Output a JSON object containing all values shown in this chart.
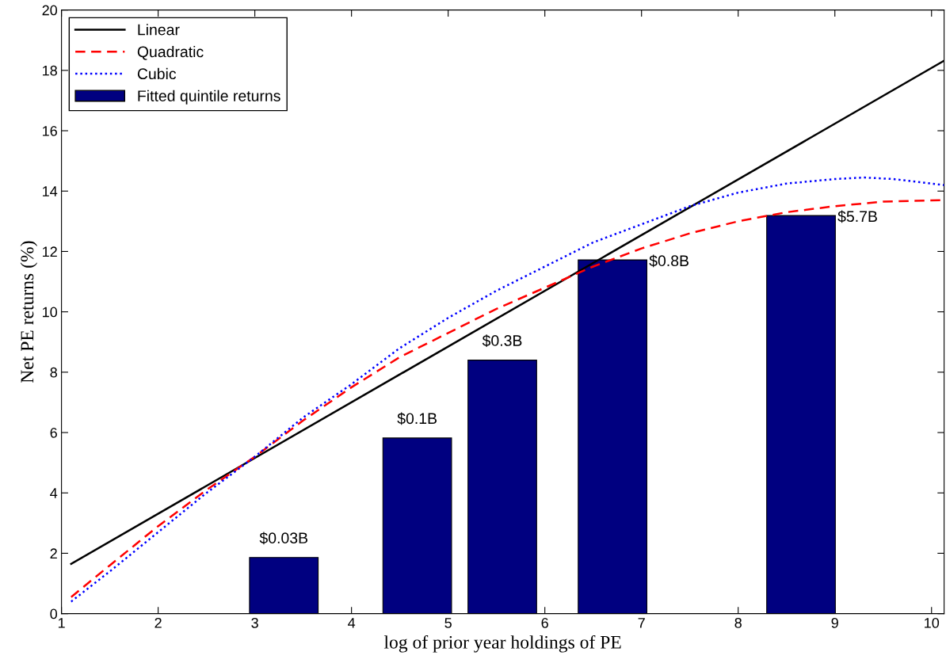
{
  "chart_data": {
    "type": "bar",
    "xlabel": "log of prior year holdings of PE",
    "ylabel": "Net PE returns (%)",
    "xlim": [
      1,
      10.13
    ],
    "ylim": [
      0,
      20
    ],
    "xticks": [
      1,
      2,
      3,
      4,
      5,
      6,
      7,
      8,
      9,
      10
    ],
    "yticks": [
      0,
      2,
      4,
      6,
      8,
      10,
      12,
      14,
      16,
      18,
      20
    ],
    "grid": false,
    "legend": "top left",
    "series": [
      {
        "name": "Linear",
        "type": "line",
        "color": "#000000",
        "line_style": "solid",
        "x": [
          1.1,
          10.13
        ],
        "values": [
          1.65,
          18.32
        ]
      },
      {
        "name": "Quadratic",
        "type": "line",
        "color": "#ff0000",
        "line_style": "dashed",
        "x": [
          1.1,
          1.5,
          2,
          2.5,
          3,
          3.5,
          4,
          4.5,
          5,
          5.5,
          6,
          6.5,
          7,
          7.5,
          8,
          8.5,
          9,
          9.5,
          10.13
        ],
        "values": [
          0.55,
          1.6,
          2.9,
          4.1,
          5.2,
          6.4,
          7.5,
          8.5,
          9.3,
          10.1,
          10.8,
          11.5,
          12.1,
          12.6,
          13.0,
          13.3,
          13.5,
          13.65,
          13.7
        ]
      },
      {
        "name": "Cubic",
        "type": "line",
        "color": "#0000ff",
        "line_style": "dotted",
        "x": [
          1.1,
          1.5,
          2,
          2.5,
          3,
          3.5,
          4,
          4.5,
          5,
          5.5,
          6,
          6.5,
          7,
          7.5,
          8,
          8.5,
          9,
          9.3,
          9.6,
          10.13
        ],
        "values": [
          0.4,
          1.4,
          2.7,
          4.0,
          5.2,
          6.5,
          7.6,
          8.8,
          9.8,
          10.7,
          11.5,
          12.3,
          12.9,
          13.5,
          13.95,
          14.25,
          14.4,
          14.45,
          14.4,
          14.2
        ]
      },
      {
        "name": "Fitted quintile returns",
        "color": "#000080",
        "x": [
          3.3,
          4.68,
          5.56,
          6.7,
          8.65
        ],
        "values": [
          1.86,
          5.82,
          8.4,
          11.72,
          13.19
        ]
      }
    ],
    "annotations": [
      {
        "text": "$0.03B",
        "x": 3.3,
        "y": 1.86
      },
      {
        "text": "$0.1B",
        "x": 4.68,
        "y": 5.82
      },
      {
        "text": "$0.3B",
        "x": 5.56,
        "y": 8.4
      },
      {
        "text": "$0.8B",
        "x": 6.7,
        "y": 11.72
      },
      {
        "text": "$5.7B",
        "x": 8.65,
        "y": 13.19
      }
    ]
  }
}
